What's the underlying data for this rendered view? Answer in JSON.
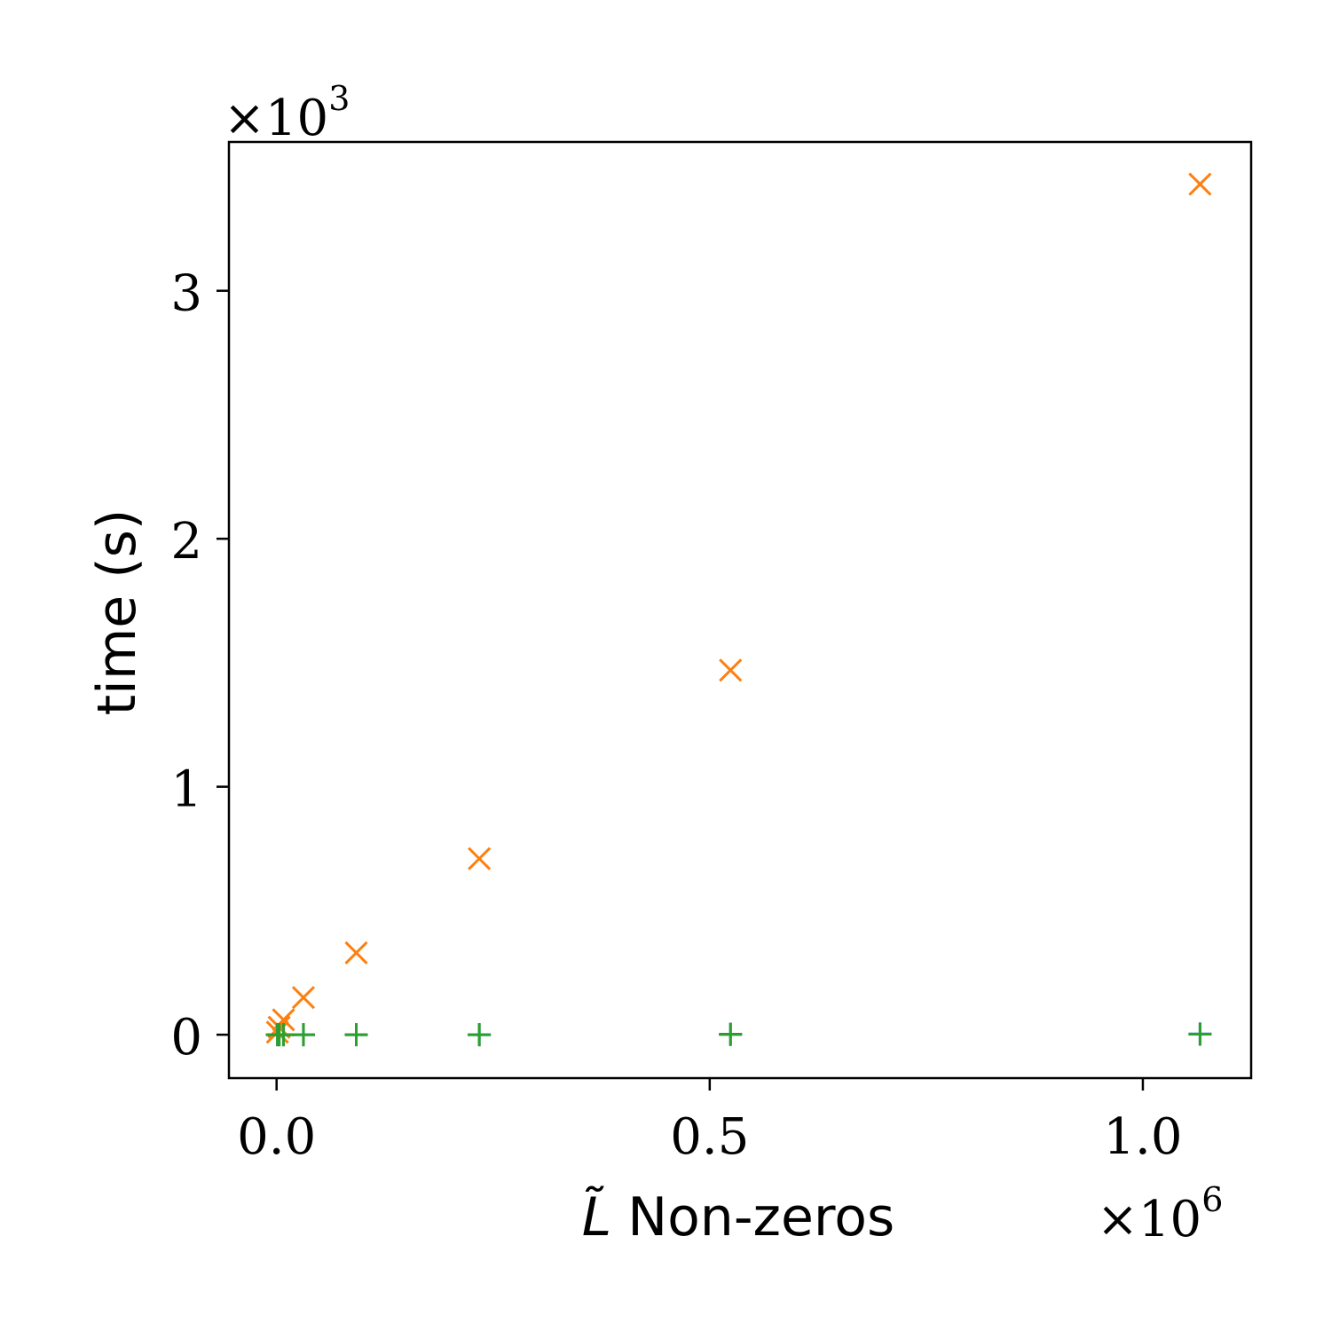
{
  "chart_data": {
    "type": "scatter",
    "title": "",
    "xlabel": "Non-zeros",
    "xlabel_symbol": "L̃",
    "ylabel": "time (s)",
    "x_multiplier": {
      "base": "×10",
      "exp": "6"
    },
    "y_multiplier": {
      "base": "×10",
      "exp": "3"
    },
    "xlim": [
      -55000,
      1125000
    ],
    "ylim": [
      -0.175,
      3.6
    ],
    "x_ticks": [
      0.0,
      0.5,
      1.0
    ],
    "x_tick_labels": [
      "0.0",
      "0.5",
      "1.0"
    ],
    "y_ticks": [
      0,
      1,
      2,
      3
    ],
    "y_tick_labels": [
      "0",
      "1",
      "2",
      "3"
    ],
    "grid": false,
    "legend": "none",
    "series": [
      {
        "marker": "x",
        "color": "#ff7f0e",
        "points": [
          [
            1000,
            0.01
          ],
          [
            3000,
            0.03
          ],
          [
            8000,
            0.06
          ],
          [
            31000,
            0.15
          ],
          [
            92000,
            0.33
          ],
          [
            234000,
            0.71
          ],
          [
            524000,
            1.47
          ],
          [
            1066000,
            3.43
          ]
        ]
      },
      {
        "marker": "+",
        "color": "#1f77b4",
        "points": [
          [
            1000,
            0.0
          ],
          [
            3000,
            0.0
          ],
          [
            8000,
            0.0
          ],
          [
            31000,
            0.0
          ],
          [
            92000,
            0.0
          ],
          [
            234000,
            0.0
          ],
          [
            524000,
            0.002
          ],
          [
            1066000,
            0.003
          ]
        ]
      },
      {
        "marker": "+",
        "color": "#2ca02c",
        "points": [
          [
            1000,
            0.0
          ],
          [
            3000,
            0.0
          ],
          [
            8000,
            0.0
          ],
          [
            31000,
            0.0
          ],
          [
            92000,
            0.0
          ],
          [
            234000,
            0.0
          ],
          [
            524000,
            0.001
          ],
          [
            1066000,
            0.002
          ]
        ]
      }
    ]
  }
}
